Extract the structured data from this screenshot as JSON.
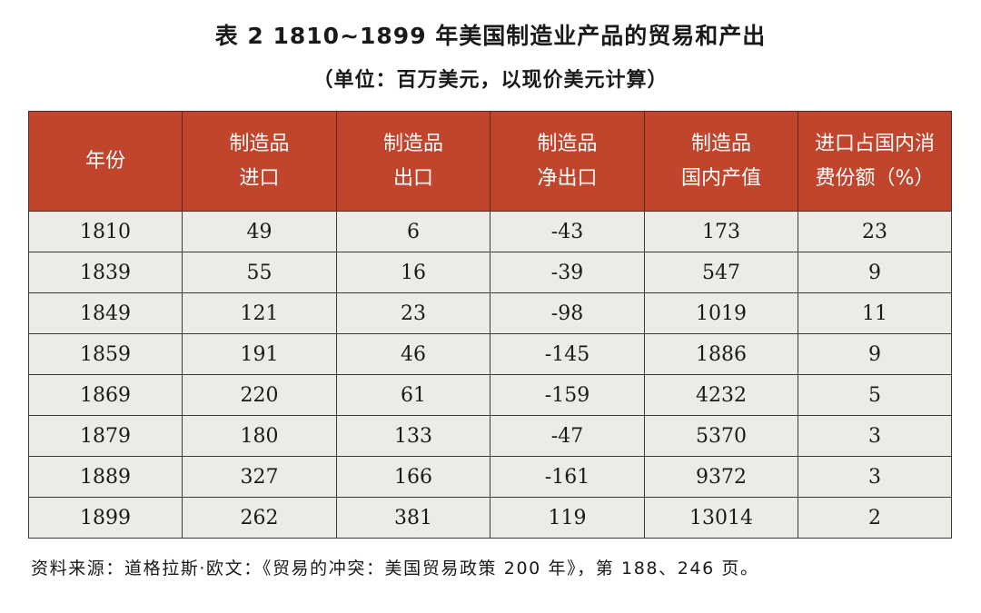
{
  "title": "表 2  1810~1899 年美国制造业产品的贸易和产出",
  "subtitle": "（单位：百万美元，以现价美元计算）",
  "table": {
    "headers": [
      {
        "line1": "年份",
        "line2": ""
      },
      {
        "line1": "制造品",
        "line2": "进口"
      },
      {
        "line1": "制造品",
        "line2": "出口"
      },
      {
        "line1": "制造品",
        "line2": "净出口"
      },
      {
        "line1": "制造品",
        "line2": "国内产值"
      },
      {
        "line1": "进口占国内消",
        "line2": "费份额（%）"
      }
    ],
    "rows": [
      [
        "1810",
        "49",
        "6",
        "-43",
        "173",
        "23"
      ],
      [
        "1839",
        "55",
        "16",
        "-39",
        "547",
        "9"
      ],
      [
        "1849",
        "121",
        "23",
        "-98",
        "1019",
        "11"
      ],
      [
        "1859",
        "191",
        "46",
        "-145",
        "1886",
        "9"
      ],
      [
        "1869",
        "220",
        "61",
        "-159",
        "4232",
        "5"
      ],
      [
        "1879",
        "180",
        "133",
        "-47",
        "5370",
        "3"
      ],
      [
        "1889",
        "327",
        "166",
        "-161",
        "9372",
        "3"
      ],
      [
        "1899",
        "262",
        "381",
        "119",
        "13014",
        "2"
      ]
    ]
  },
  "source": "资料来源：道格拉斯·欧文：《贸易的冲突：美国贸易政策 200 年》，第 188、246 页。",
  "colors": {
    "header_bg": "#c0452c",
    "cell_bg": "#ecebe6"
  }
}
